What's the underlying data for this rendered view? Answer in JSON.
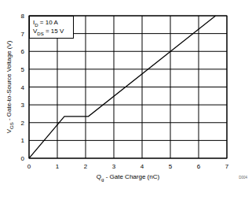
{
  "chart_data": {
    "type": "line",
    "x_label": "Qg - Gate Charge (nC)",
    "y_label": "VGS - Gate-to-Source Voltage (V)",
    "annotations": [
      "ID = 10 A",
      "VDS = 15 V"
    ],
    "caption": "D004",
    "x": [
      0,
      1.25,
      2.1,
      6.6
    ],
    "values": [
      0,
      2.35,
      2.35,
      8
    ],
    "color": "#000000",
    "xlim": [
      0,
      7
    ],
    "xticks": [
      0,
      1,
      2,
      3,
      4,
      5,
      6,
      7
    ],
    "ylim": [
      0,
      8
    ],
    "yticks": [
      0,
      1,
      2,
      3,
      4,
      5,
      6,
      7,
      8
    ],
    "grid": true
  }
}
